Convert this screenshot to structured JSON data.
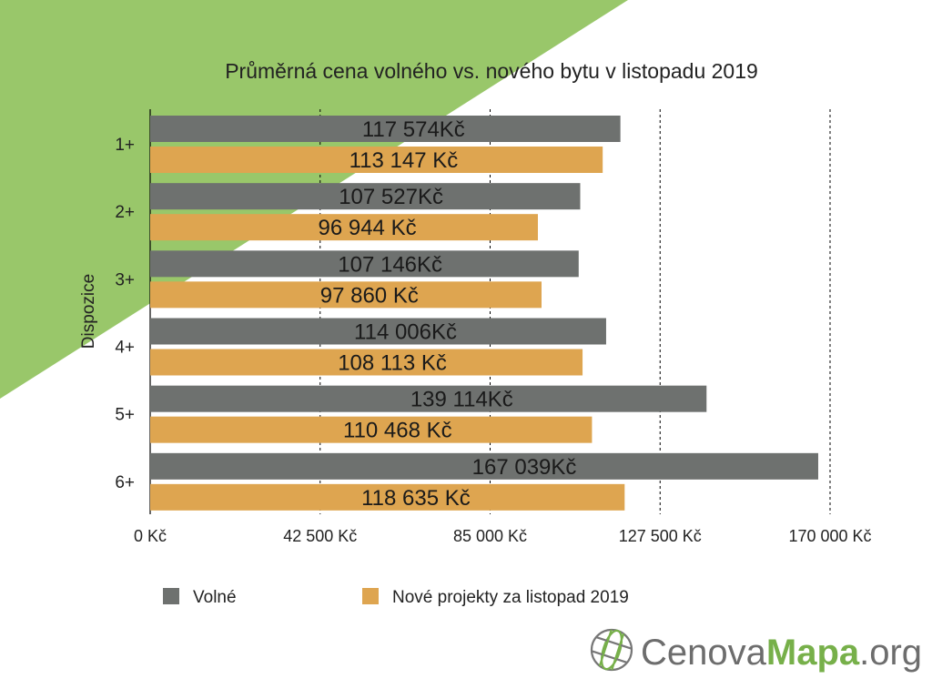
{
  "chart_data": {
    "type": "bar",
    "orientation": "horizontal",
    "title": "Průměrná cena volného vs. nového bytu v listopadu 2019",
    "ylabel": "Dispozice",
    "xlabel": "",
    "categories": [
      "1+",
      "2+",
      "3+",
      "4+",
      "5+",
      "6+"
    ],
    "series": [
      {
        "name": "Volné",
        "color": "#6e716f",
        "values": [
          117574,
          107527,
          107146,
          114006,
          139114,
          167039
        ],
        "labels": [
          "117 574Kč",
          "107 527Kč",
          "107 146Kč",
          "114 006Kč",
          "139 114Kč",
          "167 039Kč"
        ]
      },
      {
        "name": "Nové projekty za listopad 2019",
        "color": "#dea550",
        "values": [
          113147,
          96944,
          97860,
          108113,
          110468,
          118635
        ],
        "labels": [
          "113 147 Kč",
          "96 944 Kč",
          "97 860 Kč",
          "108 113 Kč",
          "110 468 Kč",
          "118 635 Kč"
        ]
      }
    ],
    "xlim": [
      0,
      170000
    ],
    "xticks": [
      0,
      42500,
      85000,
      127500,
      170000
    ],
    "xtick_labels": [
      "0 Kč",
      "42 500 Kč",
      "85 000 Kč",
      "127 500 Kč",
      "170 000 Kč"
    ],
    "grid": "vertical dashed",
    "legend": "bottom"
  },
  "logo": {
    "part1": "Cenova",
    "part2": "Mapa",
    "part3": ".org"
  },
  "colors": {
    "background_accent": "#99c76a",
    "logo_gray": "#6d6d6d",
    "logo_green": "#77b04a"
  }
}
